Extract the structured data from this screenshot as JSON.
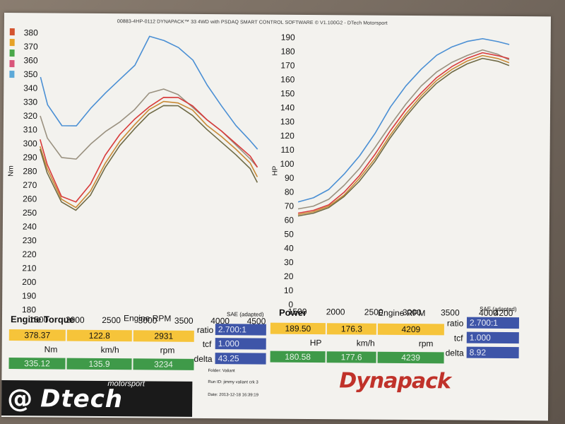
{
  "header": "00883-4HP-0112 DYNAPACK™ 33 4WD with PSDAQ SMART CONTROL SOFTWARE © V1.100G2 - DTech Motorsport",
  "legend_colors": [
    "#d4542f",
    "#e6a228",
    "#4aa84a",
    "#d9567a",
    "#5da9d8"
  ],
  "chart_data": [
    {
      "type": "line",
      "title": "Engine Torque",
      "xlabel": "Engine RPM",
      "ylabel": "Nm",
      "xlim": [
        1500,
        4500
      ],
      "ylim": [
        180,
        380
      ],
      "x_ticks": [
        1500,
        2000,
        2500,
        3000,
        3500,
        4000,
        4500
      ],
      "y_ticks": [
        180,
        190,
        200,
        210,
        220,
        230,
        240,
        250,
        260,
        270,
        280,
        290,
        300,
        310,
        320,
        330,
        340,
        350,
        360,
        370,
        380
      ],
      "legend_values": [
        380,
        370,
        360,
        350
      ],
      "series": [
        {
          "color": "#4a8fd4",
          "x": [
            1500,
            1600,
            1800,
            2000,
            2200,
            2400,
            2600,
            2800,
            3000,
            3200,
            3400,
            3600,
            3800,
            4000,
            4200,
            4400,
            4500
          ],
          "values": [
            348,
            328,
            313,
            313,
            326,
            337,
            347,
            357,
            378,
            375,
            370,
            361,
            343,
            328,
            314,
            303,
            297
          ]
        },
        {
          "color": "#9a9180",
          "x": [
            1500,
            1600,
            1800,
            2000,
            2200,
            2400,
            2600,
            2800,
            3000,
            3200,
            3400,
            3600,
            3800,
            4000,
            4200,
            4400,
            4500
          ],
          "values": [
            320,
            304,
            290,
            289,
            300,
            309,
            316,
            325,
            337,
            340,
            336,
            327,
            318,
            310,
            300,
            290,
            284
          ]
        },
        {
          "color": "#d83b3b",
          "x": [
            1500,
            1600,
            1800,
            2000,
            2200,
            2400,
            2600,
            2800,
            3000,
            3200,
            3400,
            3600,
            3800,
            4000,
            4200,
            4400,
            4500
          ],
          "values": [
            303,
            285,
            262,
            258,
            271,
            292,
            307,
            318,
            327,
            334,
            334,
            328,
            318,
            310,
            301,
            292,
            284
          ]
        },
        {
          "color": "#c98a35",
          "x": [
            1500,
            1600,
            1800,
            2000,
            2200,
            2400,
            2600,
            2800,
            3000,
            3200,
            3400,
            3600,
            3800,
            4000,
            4200,
            4400,
            4500
          ],
          "values": [
            298,
            282,
            260,
            254,
            266,
            286,
            302,
            314,
            325,
            331,
            330,
            325,
            314,
            306,
            297,
            287,
            277
          ]
        },
        {
          "color": "#6f6a45",
          "x": [
            1500,
            1600,
            1800,
            2000,
            2200,
            2400,
            2600,
            2800,
            3000,
            3200,
            3400,
            3600,
            3800,
            4000,
            4200,
            4400,
            4500
          ],
          "values": [
            296,
            279,
            258,
            252,
            263,
            283,
            299,
            311,
            322,
            328,
            328,
            321,
            311,
            302,
            293,
            283,
            273
          ]
        }
      ]
    },
    {
      "type": "line",
      "title": "Power",
      "xlabel": "Engine RPM",
      "ylabel": "HP",
      "xlim": [
        1500,
        4200
      ],
      "ylim": [
        0,
        190
      ],
      "x_ticks": [
        1500,
        2000,
        2500,
        3000,
        3500,
        4000,
        4200
      ],
      "y_ticks": [
        0,
        10,
        20,
        30,
        40,
        50,
        60,
        70,
        80,
        90,
        100,
        110,
        120,
        130,
        140,
        150,
        160,
        170,
        180,
        190
      ],
      "series": [
        {
          "color": "#4a8fd4",
          "x": [
            1500,
            1700,
            1900,
            2100,
            2300,
            2500,
            2700,
            2900,
            3100,
            3300,
            3500,
            3700,
            3900,
            4100,
            4250
          ],
          "values": [
            73,
            76,
            82,
            93,
            106,
            122,
            141,
            156,
            168,
            178,
            184,
            188,
            190,
            188,
            186
          ]
        },
        {
          "color": "#9a9180",
          "x": [
            1500,
            1700,
            1900,
            2100,
            2300,
            2500,
            2700,
            2900,
            3100,
            3300,
            3500,
            3700,
            3900,
            4100,
            4250
          ],
          "values": [
            68,
            70,
            75,
            85,
            97,
            112,
            128,
            143,
            156,
            166,
            173,
            178,
            182,
            179,
            175
          ]
        },
        {
          "color": "#d83b3b",
          "x": [
            1500,
            1700,
            1900,
            2100,
            2300,
            2500,
            2700,
            2900,
            3100,
            3300,
            3500,
            3700,
            3900,
            4100,
            4250
          ],
          "values": [
            65,
            67,
            71,
            80,
            92,
            107,
            124,
            139,
            151,
            162,
            170,
            176,
            180,
            178,
            176
          ]
        },
        {
          "color": "#c98a35",
          "x": [
            1500,
            1700,
            1900,
            2100,
            2300,
            2500,
            2700,
            2900,
            3100,
            3300,
            3500,
            3700,
            3900,
            4100,
            4250
          ],
          "values": [
            64,
            66,
            70,
            78,
            90,
            104,
            121,
            136,
            149,
            160,
            168,
            174,
            178,
            176,
            173
          ]
        },
        {
          "color": "#6f6a45",
          "x": [
            1500,
            1700,
            1900,
            2100,
            2300,
            2500,
            2700,
            2900,
            3100,
            3300,
            3500,
            3700,
            3900,
            4100,
            4250
          ],
          "values": [
            63,
            65,
            69,
            77,
            88,
            102,
            119,
            134,
            147,
            158,
            166,
            172,
            176,
            174,
            171
          ]
        }
      ]
    }
  ],
  "torque_panel": {
    "title": "Engine Torque",
    "rpm_label": "Engine RPM",
    "sae": "SAE (adapted)",
    "top_values": [
      "378.37",
      "122.8",
      "2931"
    ],
    "units": [
      "Nm",
      "km/h",
      "rpm"
    ],
    "bottom_values": [
      "335.12",
      "135.9",
      "3234"
    ],
    "ratio_label": "ratio",
    "ratio": "2.700:1",
    "tcf_label": "tcf",
    "tcf": "1.000",
    "delta_label": "delta",
    "delta": "43.25"
  },
  "power_panel": {
    "title": "Power",
    "rpm_label": "Engine RPM",
    "sae": "SAE (adapted)",
    "top_values": [
      "189.50",
      "176.3",
      "4209"
    ],
    "units": [
      "HP",
      "km/h",
      "rpm"
    ],
    "bottom_values": [
      "180.58",
      "177.6",
      "4239"
    ],
    "ratio_label": "ratio",
    "ratio": "2.700:1",
    "tcf_label": "tcf",
    "tcf": "1.000",
    "delta_label": "delta",
    "delta": "8.92"
  },
  "footer": {
    "folder": "Folder: Valiant",
    "run_id": "Run ID: jimmy valiant crk 3",
    "date": "Date: 2013-12-18 16:39:19",
    "brand_left": "Dtech",
    "brand_left_sub": "motorsport",
    "brand_right": "Dynapack"
  }
}
